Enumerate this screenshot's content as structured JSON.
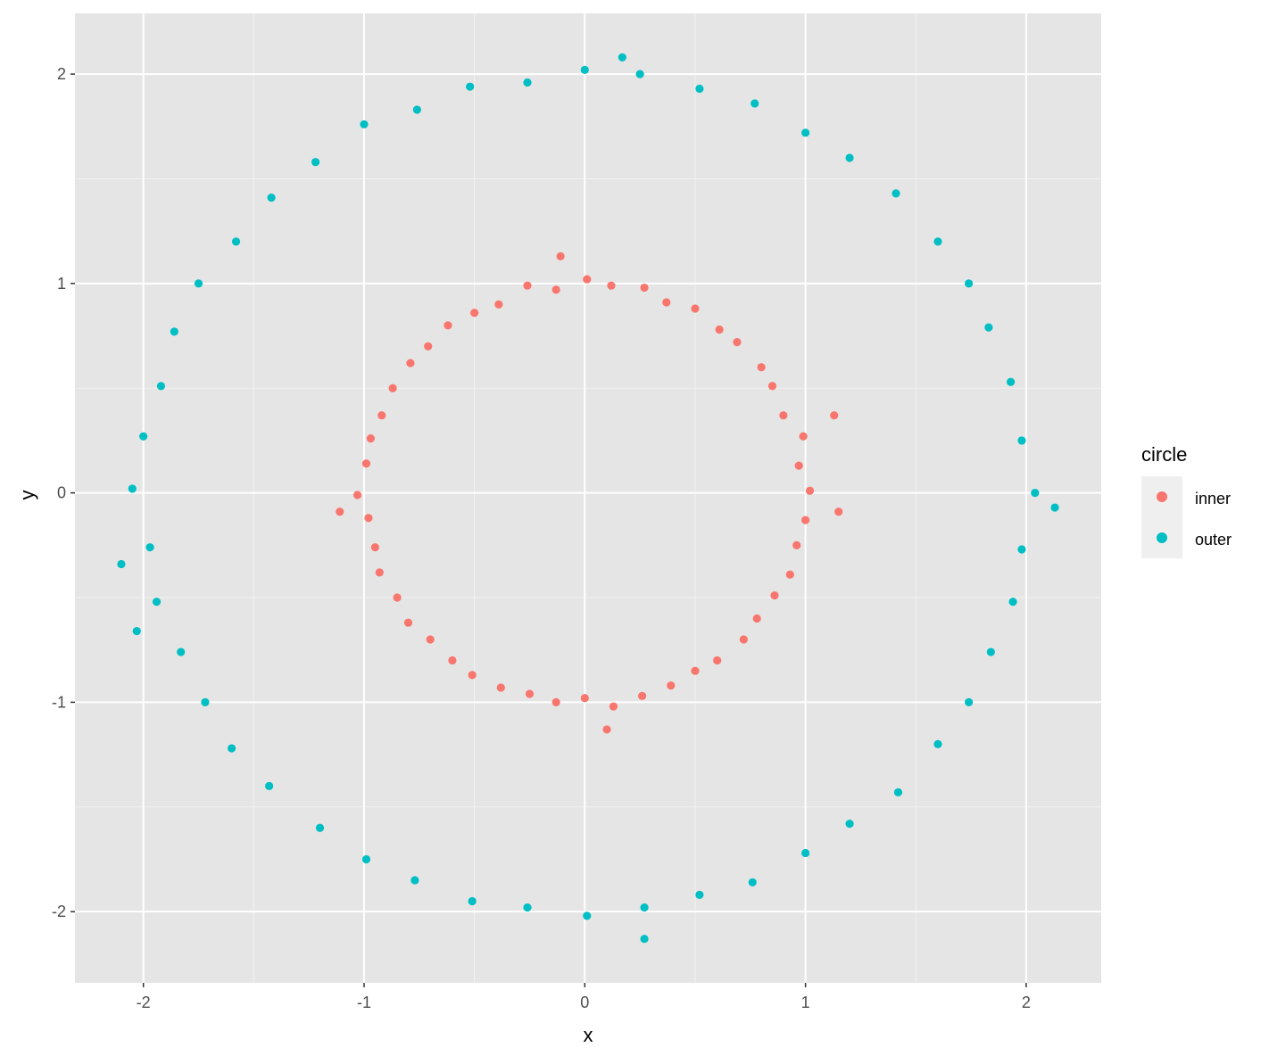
{
  "chart_data": {
    "type": "scatter",
    "title": "",
    "xlabel": "x",
    "ylabel": "y",
    "xlim": [
      -2.31,
      2.34
    ],
    "ylim": [
      -2.34,
      2.29
    ],
    "x_ticks": [
      -2,
      -1,
      0,
      1,
      2
    ],
    "y_ticks": [
      -2,
      -1,
      0,
      1,
      2
    ],
    "x_tick_labels": [
      "-2",
      "-1",
      "0",
      "1",
      "2"
    ],
    "y_tick_labels": [
      "-2",
      "-1",
      "0",
      "1",
      "2"
    ],
    "grid": true,
    "panel_background": "#E5E5E5",
    "legend": {
      "title": "circle",
      "placement": "right"
    },
    "series": [
      {
        "name": "inner",
        "color": "#F8766D",
        "points": [
          [
            1.02,
            0.01
          ],
          [
            0.97,
            0.13
          ],
          [
            0.99,
            0.27
          ],
          [
            0.9,
            0.37
          ],
          [
            0.85,
            0.51
          ],
          [
            0.8,
            0.6
          ],
          [
            0.69,
            0.72
          ],
          [
            0.61,
            0.78
          ],
          [
            0.5,
            0.88
          ],
          [
            0.37,
            0.91
          ],
          [
            0.27,
            0.98
          ],
          [
            0.12,
            0.99
          ],
          [
            0.01,
            1.02
          ],
          [
            -0.13,
            0.97
          ],
          [
            -0.26,
            0.99
          ],
          [
            -0.39,
            0.9
          ],
          [
            -0.5,
            0.86
          ],
          [
            -0.62,
            0.8
          ],
          [
            -0.71,
            0.7
          ],
          [
            -0.79,
            0.62
          ],
          [
            -0.87,
            0.5
          ],
          [
            -0.92,
            0.37
          ],
          [
            -0.97,
            0.26
          ],
          [
            -0.99,
            0.14
          ],
          [
            -1.03,
            -0.01
          ],
          [
            -0.98,
            -0.12
          ],
          [
            -0.95,
            -0.26
          ],
          [
            -0.93,
            -0.38
          ],
          [
            -0.85,
            -0.5
          ],
          [
            -0.8,
            -0.62
          ],
          [
            -0.7,
            -0.7
          ],
          [
            -0.6,
            -0.8
          ],
          [
            -0.51,
            -0.87
          ],
          [
            -0.38,
            -0.93
          ],
          [
            -0.25,
            -0.96
          ],
          [
            -0.13,
            -1.0
          ],
          [
            0.0,
            -0.98
          ],
          [
            0.13,
            -1.02
          ],
          [
            0.26,
            -0.97
          ],
          [
            0.39,
            -0.92
          ],
          [
            0.5,
            -0.85
          ],
          [
            0.6,
            -0.8
          ],
          [
            0.72,
            -0.7
          ],
          [
            0.78,
            -0.6
          ],
          [
            0.86,
            -0.49
          ],
          [
            0.93,
            -0.39
          ],
          [
            0.96,
            -0.25
          ],
          [
            1.0,
            -0.13
          ],
          [
            1.13,
            0.37
          ],
          [
            1.15,
            -0.09
          ],
          [
            -1.11,
            -0.09
          ],
          [
            0.1,
            -1.13
          ],
          [
            -0.11,
            1.13
          ]
        ]
      },
      {
        "name": "outer",
        "color": "#00BFC4",
        "points": [
          [
            2.04,
            0.0
          ],
          [
            1.98,
            0.25
          ],
          [
            1.93,
            0.53
          ],
          [
            1.83,
            0.79
          ],
          [
            1.74,
            1.0
          ],
          [
            1.6,
            1.2
          ],
          [
            1.41,
            1.43
          ],
          [
            1.2,
            1.6
          ],
          [
            1.0,
            1.72
          ],
          [
            0.77,
            1.86
          ],
          [
            0.52,
            1.93
          ],
          [
            0.25,
            2.0
          ],
          [
            0.0,
            2.02
          ],
          [
            -0.26,
            1.96
          ],
          [
            -0.52,
            1.94
          ],
          [
            -0.76,
            1.83
          ],
          [
            -1.0,
            1.76
          ],
          [
            -1.22,
            1.58
          ],
          [
            -1.42,
            1.41
          ],
          [
            -1.58,
            1.2
          ],
          [
            -1.75,
            1.0
          ],
          [
            -1.86,
            0.77
          ],
          [
            -1.92,
            0.51
          ],
          [
            -2.0,
            0.27
          ],
          [
            -2.05,
            0.02
          ],
          [
            -1.97,
            -0.26
          ],
          [
            -1.94,
            -0.52
          ],
          [
            -1.83,
            -0.76
          ],
          [
            -1.72,
            -1.0
          ],
          [
            -1.6,
            -1.22
          ],
          [
            -1.43,
            -1.4
          ],
          [
            -1.2,
            -1.6
          ],
          [
            -0.99,
            -1.75
          ],
          [
            -0.77,
            -1.85
          ],
          [
            -0.51,
            -1.95
          ],
          [
            -0.26,
            -1.98
          ],
          [
            0.01,
            -2.02
          ],
          [
            0.27,
            -1.98
          ],
          [
            0.52,
            -1.92
          ],
          [
            0.76,
            -1.86
          ],
          [
            1.0,
            -1.72
          ],
          [
            1.2,
            -1.58
          ],
          [
            1.42,
            -1.43
          ],
          [
            1.6,
            -1.2
          ],
          [
            1.74,
            -1.0
          ],
          [
            1.84,
            -0.76
          ],
          [
            1.94,
            -0.52
          ],
          [
            1.98,
            -0.27
          ],
          [
            -2.1,
            -0.34
          ],
          [
            2.13,
            -0.07
          ],
          [
            0.27,
            -2.13
          ],
          [
            0.17,
            2.08
          ],
          [
            -2.03,
            -0.66
          ]
        ]
      }
    ]
  }
}
